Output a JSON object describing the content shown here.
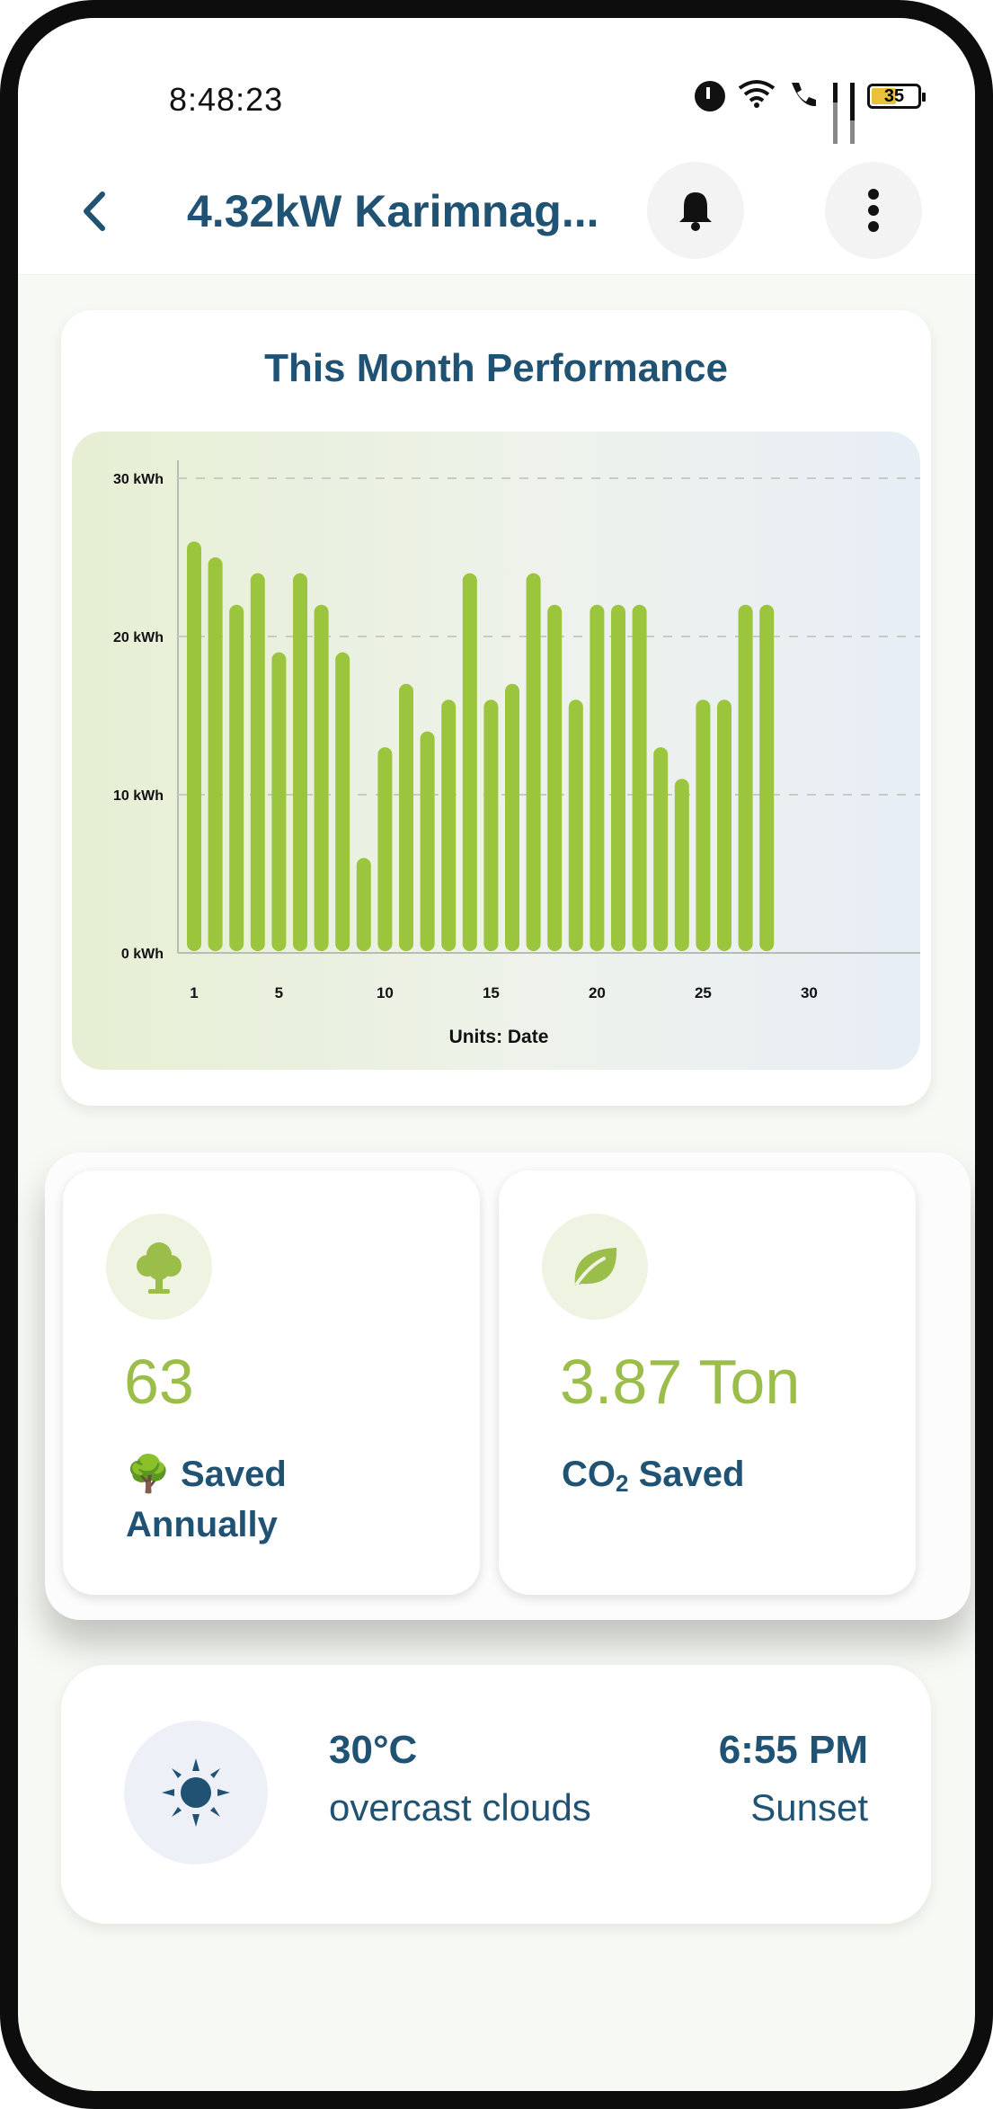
{
  "status_bar": {
    "time": "8:48:23",
    "battery": "35"
  },
  "header": {
    "title": "4.32kW Karimnag...",
    "back_icon": "chevron-left-icon",
    "bell_icon": "bell-icon",
    "more_icon": "more-vertical-icon"
  },
  "performance": {
    "title": "This Month Performance"
  },
  "chart_data": {
    "type": "bar",
    "title": "This Month Performance",
    "xlabel": "Units: Date",
    "ylabel": "",
    "ylim": [
      0,
      30
    ],
    "yticks": [
      "0 kWh",
      "10 kWh",
      "20 kWh",
      "30 kWh"
    ],
    "xticks": [
      "1",
      "5",
      "10",
      "15",
      "20",
      "25",
      "30"
    ],
    "x": [
      1,
      2,
      3,
      4,
      5,
      6,
      7,
      8,
      9,
      10,
      11,
      12,
      13,
      14,
      15,
      16,
      17,
      18,
      19,
      20,
      21,
      22,
      23,
      24,
      25,
      26,
      27,
      28
    ],
    "values": [
      26,
      25,
      22,
      24,
      19,
      24,
      22,
      19,
      6,
      13,
      17,
      14,
      16,
      24,
      16,
      17,
      24,
      22,
      16,
      22,
      22,
      22,
      13,
      11,
      16,
      16,
      22,
      22
    ],
    "bar_color": "#9bc53d",
    "grid": true
  },
  "stats": {
    "trees": {
      "icon": "tree-icon",
      "value": "63",
      "label_emoji": "🌳",
      "label": "Saved",
      "label_line2": "Annually"
    },
    "co2": {
      "icon": "leaf-icon",
      "value": "3.87 Ton",
      "label_prefix": "CO",
      "label_sub": "2",
      "label_suffix": " Saved"
    }
  },
  "weather": {
    "icon": "sun-icon",
    "temperature": "30°C",
    "condition": "overcast clouds",
    "sunset_time": "6:55 PM",
    "sunset_label": "Sunset"
  },
  "colors": {
    "primary": "#1f5273",
    "accent_green": "#9bbd4a"
  }
}
